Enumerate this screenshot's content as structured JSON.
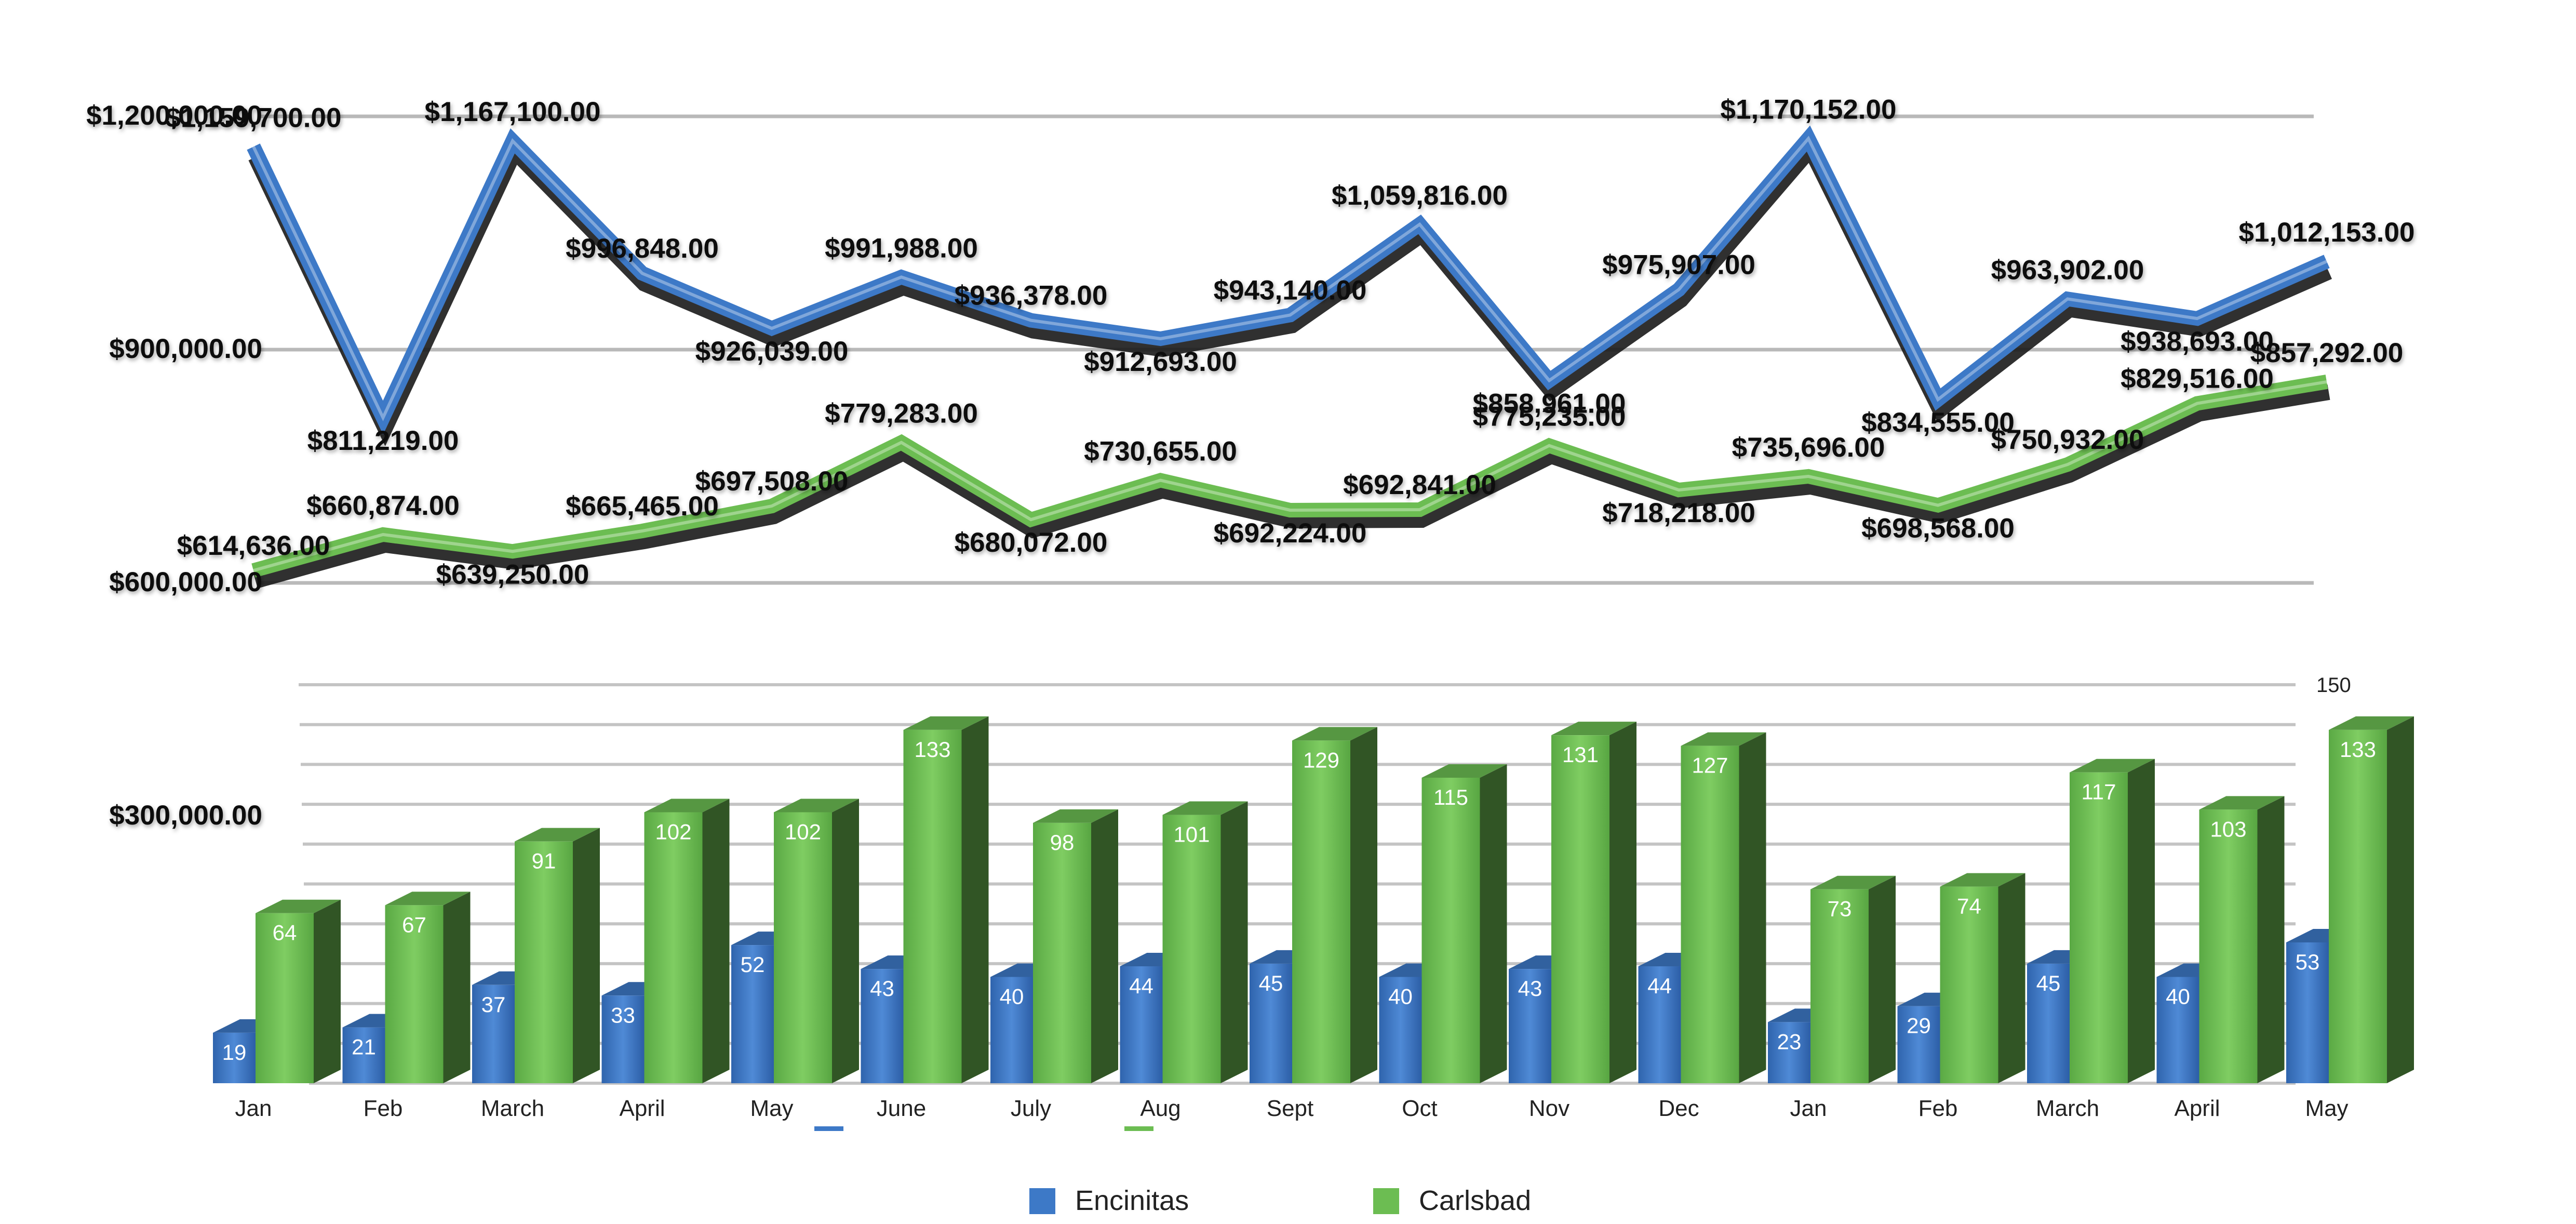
{
  "chart_data": {
    "type": "bar",
    "categories": [
      "Jan",
      "Feb",
      "March",
      "April",
      "May",
      "June",
      "July",
      "Aug",
      "Sept",
      "Oct",
      "Nov",
      "Dec",
      "Jan",
      "Feb",
      "March",
      "April",
      "May"
    ],
    "colors": {
      "encinitas": "#3d79c7",
      "carlsbad": "#6cbd52"
    },
    "legend": {
      "position": "bottom"
    },
    "price_axis": {
      "ticks": [
        "$1,200,000.00",
        "$900,000.00",
        "$600,000.00",
        "$300,000.00"
      ],
      "ylim": [
        250000,
        1200000
      ]
    },
    "count_axis": {
      "ticks": [
        "150"
      ],
      "ylim": [
        0,
        150
      ]
    },
    "series": [
      {
        "name": "Encinitas",
        "type": "line",
        "axis": "price",
        "values": [
          1159700,
          811219,
          1167100,
          996848,
          926039,
          991988,
          936378,
          912693,
          943140,
          1059816,
          858961,
          975907,
          1170152,
          834555,
          963902,
          938693,
          1012153
        ],
        "labels": [
          "$1,159,700.00",
          "$811,219.00",
          "$1,167,100.00",
          "$996,848.00",
          "$926,039.00",
          "$991,988.00",
          "$936,378.00",
          "$912,693.00",
          "$943,140.00",
          "$1,059,816.00",
          "$858,961.00",
          "$975,907.00",
          "$1,170,152.00",
          "$834,555.00",
          "$963,902.00",
          "$938,693.00",
          "$1,012,153.00"
        ]
      },
      {
        "name": "Carlsbad",
        "type": "line",
        "axis": "price",
        "values": [
          614636,
          660874,
          639250,
          665465,
          697508,
          779283,
          680072,
          730655,
          692224,
          692841,
          775235,
          718218,
          735696,
          698568,
          750932,
          829516,
          857292
        ],
        "labels": [
          "$614,636.00",
          "$660,874.00",
          "$639,250.00",
          "$665,465.00",
          "$697,508.00",
          "$779,283.00",
          "$680,072.00",
          "$730,655.00",
          "$692,224.00",
          "$692,841.00",
          "$775,235.00",
          "$718,218.00",
          "$735,696.00",
          "$698,568.00",
          "$750,932.00",
          "$829,516.00",
          "$857,292.00"
        ]
      },
      {
        "name": "Encinitas",
        "type": "bar",
        "axis": "count",
        "values": [
          19,
          21,
          37,
          33,
          52,
          43,
          40,
          44,
          45,
          40,
          43,
          44,
          23,
          29,
          45,
          40,
          53
        ],
        "labels": [
          "19",
          "21",
          "37",
          "33",
          "52",
          "43",
          "40",
          "44",
          "45",
          "40",
          "43",
          "44",
          "23",
          "29",
          "45",
          "40",
          "53"
        ]
      },
      {
        "name": "Carlsbad",
        "type": "bar",
        "axis": "count",
        "values": [
          64,
          67,
          91,
          102,
          102,
          133,
          98,
          101,
          129,
          115,
          131,
          127,
          73,
          74,
          117,
          103,
          133
        ],
        "labels": [
          "64",
          "67",
          "91",
          "102",
          "102",
          "133",
          "98",
          "101",
          "129",
          "115",
          "131",
          "127",
          "73",
          "74",
          "117",
          "103",
          "133"
        ]
      }
    ]
  }
}
